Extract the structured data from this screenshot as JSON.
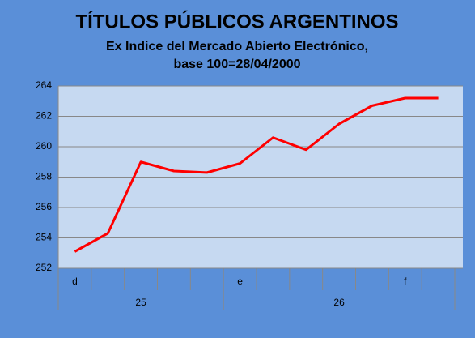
{
  "chart_data": {
    "type": "line",
    "title": "TÍTULOS PÚBLICOS ARGENTINOS",
    "subtitle": [
      "Ex Indice del Mercado Abierto Electrónico,",
      "base 100=28/04/2000"
    ],
    "categories": [
      "d",
      null,
      null,
      null,
      null,
      "e",
      null,
      null,
      null,
      null,
      "f",
      null
    ],
    "category_groups": [
      "25",
      null,
      null,
      null,
      null,
      "26",
      null,
      null,
      null,
      null,
      null,
      null
    ],
    "series": [
      {
        "name": null,
        "color": "#ff0000",
        "values": [
          253.1,
          254.3,
          259.0,
          258.4,
          258.3,
          258.9,
          260.6,
          259.8,
          261.5,
          262.7,
          263.2,
          263.2
        ]
      }
    ],
    "ylim": [
      252,
      264
    ],
    "yticks": [
      252,
      254,
      256,
      258,
      260,
      262,
      264
    ],
    "grid": true
  }
}
